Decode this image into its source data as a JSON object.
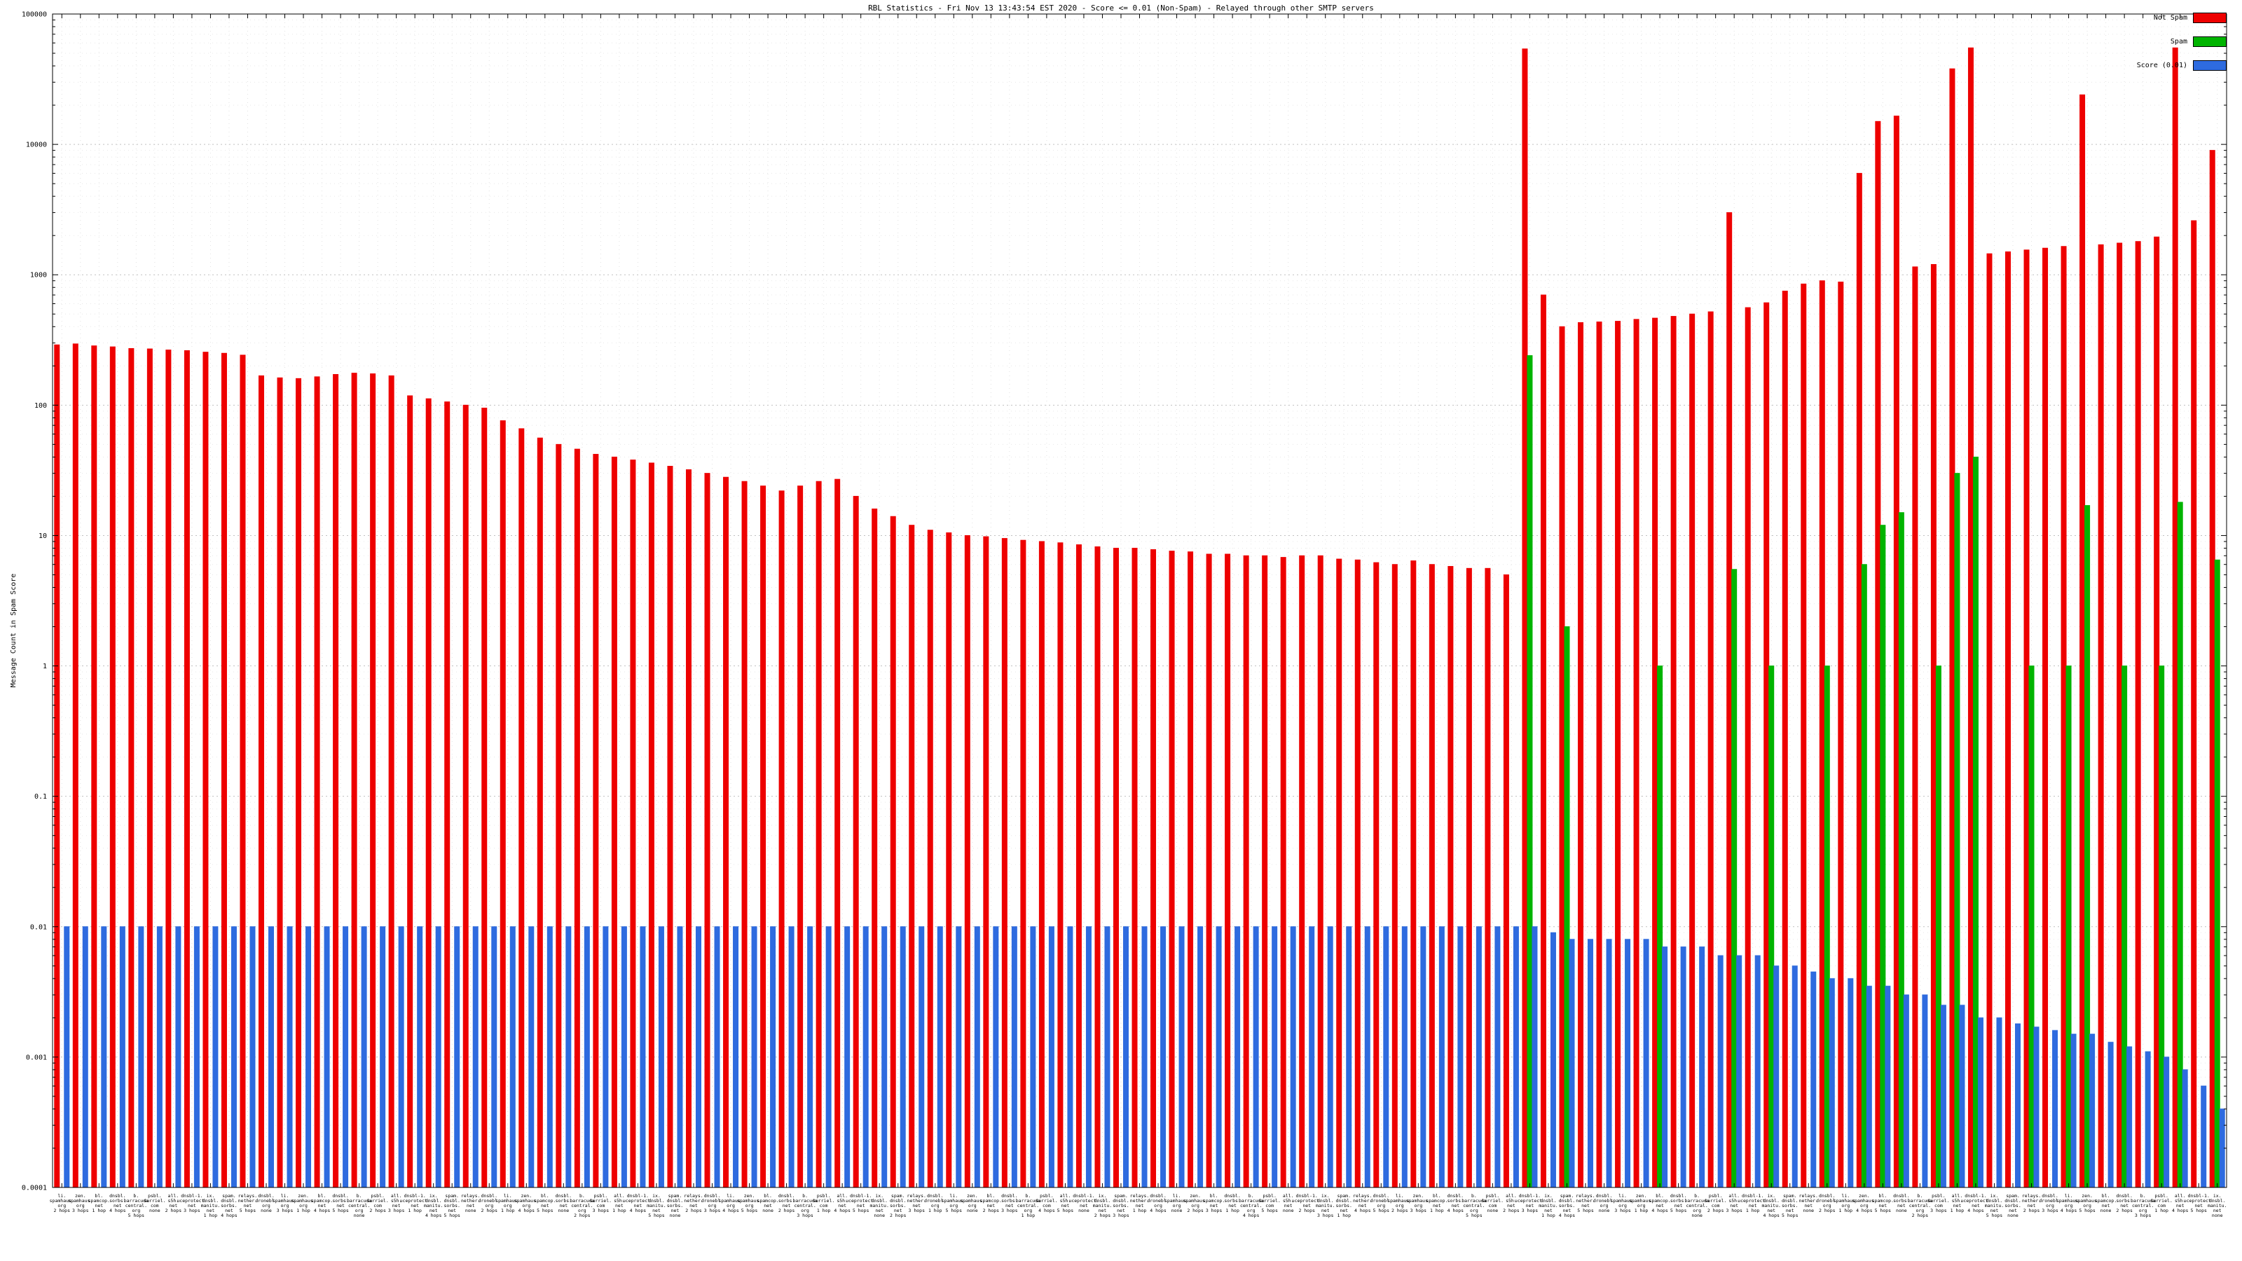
{
  "chart_data": {
    "type": "bar",
    "title": "RBL Statistics - Fri Nov 13 13:43:54 EST 2020 - Score <= 0.01 (Non-Spam) - Relayed through other SMTP servers",
    "ylabel": "Message Count in Spam Score",
    "xlabel": "",
    "yscale": "log",
    "ylim": [
      0.0001,
      100000
    ],
    "y_ticks": [
      "100000",
      "10000",
      "1000",
      "100",
      "10",
      "1",
      "0.1",
      "0.01",
      "0.001",
      "0.0001"
    ],
    "grid": true,
    "legend_position": "top-right",
    "legend": [
      {
        "label": "Not Spam",
        "color": "#ee0000"
      },
      {
        "label": "Spam",
        "color": "#00b400"
      },
      {
        "label": "Score (0.01)",
        "color": "#2e6bdf"
      }
    ],
    "categories": [
      "li.|spamhaus.|org|2 hops",
      "zen.|spamhaus.|org|3 hops",
      "bl.|spamcop.|net|1 hop",
      "dnsbl.|sorbs.|net|4 hops",
      "b.|barracuda|central.|org|5 hops",
      "psbl.|surriel.|com|none",
      "all.|s5h.|net|2 hops",
      "dnsbl-1.|uceprotect.|net|3 hops",
      "ix.|dnsbl.|manitu.|net|1 hop",
      "spam.|dnsbl.|sorbs.|net|4 hops",
      "relays.|nether.|net|5 hops",
      "dnsbl.|dronebl.|org|none",
      "li.|spamhaus.|org|3 hops",
      "zen.|spamhaus.|org|1 hop",
      "bl.|spamcop.|net|4 hops",
      "dnsbl.|sorbs.|net|5 hops",
      "b.|barracuda|central.|org|none",
      "psbl.|surriel.|com|2 hops",
      "all.|s5h.|net|3 hops",
      "dnsbl-1.|uceprotect.|net|1 hop",
      "ix.|dnsbl.|manitu.|net|4 hops",
      "spam.|dnsbl.|sorbs.|net|5 hops",
      "relays.|nether.|net|none",
      "dnsbl.|dronebl.|org|2 hops",
      "li.|spamhaus.|org|1 hop",
      "zen.|spamhaus.|org|4 hops",
      "bl.|spamcop.|net|5 hops",
      "dnsbl.|sorbs.|net|none",
      "b.|barracuda|central.|org|2 hops",
      "psbl.|surriel.|com|3 hops",
      "all.|s5h.|net|1 hop",
      "dnsbl-1.|uceprotect.|net|4 hops",
      "ix.|dnsbl.|manitu.|net|5 hops",
      "spam.|dnsbl.|sorbs.|net|none",
      "relays.|nether.|net|2 hops",
      "dnsbl.|dronebl.|org|3 hops",
      "li.|spamhaus.|org|4 hops",
      "zen.|spamhaus.|org|5 hops",
      "bl.|spamcop.|net|none",
      "dnsbl.|sorbs.|net|2 hops",
      "b.|barracuda|central.|org|3 hops",
      "psbl.|surriel.|com|1 hop",
      "all.|s5h.|net|4 hops",
      "dnsbl-1.|uceprotect.|net|5 hops",
      "ix.|dnsbl.|manitu.|net|none",
      "spam.|dnsbl.|sorbs.|net|2 hops",
      "relays.|nether.|net|3 hops",
      "dnsbl.|dronebl.|org|1 hop",
      "li.|spamhaus.|org|5 hops",
      "zen.|spamhaus.|org|none",
      "bl.|spamcop.|net|2 hops",
      "dnsbl.|sorbs.|net|3 hops",
      "b.|barracuda|central.|org|1 hop",
      "psbl.|surriel.|com|4 hops",
      "all.|s5h.|net|5 hops",
      "dnsbl-1.|uceprotect.|net|none",
      "ix.|dnsbl.|manitu.|net|2 hops",
      "spam.|dnsbl.|sorbs.|net|3 hops",
      "relays.|nether.|net|1 hop",
      "dnsbl.|dronebl.|org|4 hops",
      "li.|spamhaus.|org|none",
      "zen.|spamhaus.|org|2 hops",
      "bl.|spamcop.|net|3 hops",
      "dnsbl.|sorbs.|net|1 hop",
      "b.|barracuda|central.|org|4 hops",
      "psbl.|surriel.|com|5 hops",
      "all.|s5h.|net|none",
      "dnsbl-1.|uceprotect.|net|2 hops",
      "ix.|dnsbl.|manitu.|net|3 hops",
      "spam.|dnsbl.|sorbs.|net|1 hop",
      "relays.|nether.|net|4 hops",
      "dnsbl.|dronebl.|org|5 hops",
      "li.|spamhaus.|org|2 hops",
      "zen.|spamhaus.|org|3 hops",
      "bl.|spamcop.|net|1 hop",
      "dnsbl.|sorbs.|net|4 hops",
      "b.|barracuda|central.|org|5 hops",
      "psbl.|surriel.|com|none",
      "all.|s5h.|net|2 hops",
      "dnsbl-1.|uceprotect.|net|3 hops",
      "ix.|dnsbl.|manitu.|net|1 hop",
      "spam.|dnsbl.|sorbs.|net|4 hops",
      "relays.|nether.|net|5 hops",
      "dnsbl.|dronebl.|org|none",
      "li.|spamhaus.|org|3 hops",
      "zen.|spamhaus.|org|1 hop",
      "bl.|spamcop.|net|4 hops",
      "dnsbl.|sorbs.|net|5 hops",
      "b.|barracuda|central.|org|none",
      "psbl.|surriel.|com|2 hops",
      "all.|s5h.|net|3 hops",
      "dnsbl-1.|uceprotect.|net|1 hop",
      "ix.|dnsbl.|manitu.|net|4 hops",
      "spam.|dnsbl.|sorbs.|net|5 hops",
      "relays.|nether.|net|none",
      "dnsbl.|dronebl.|org|2 hops",
      "li.|spamhaus.|org|1 hop",
      "zen.|spamhaus.|org|4 hops",
      "bl.|spamcop.|net|5 hops",
      "dnsbl.|sorbs.|net|none",
      "b.|barracuda|central.|org|2 hops",
      "psbl.|surriel.|com|3 hops",
      "all.|s5h.|net|1 hop",
      "dnsbl-1.|uceprotect.|net|4 hops",
      "ix.|dnsbl.|manitu.|net|5 hops",
      "spam.|dnsbl.|sorbs.|net|none",
      "relays.|nether.|net|2 hops",
      "dnsbl.|dronebl.|org|3 hops",
      "li.|spamhaus.|org|4 hops",
      "zen.|spamhaus.|org|5 hops",
      "bl.|spamcop.|net|none",
      "dnsbl.|sorbs.|net|2 hops",
      "b.|barracuda|central.|org|3 hops",
      "psbl.|surriel.|com|1 hop",
      "all.|s5h.|net|4 hops",
      "dnsbl-1.|uceprotect.|net|5 hops",
      "ix.|dnsbl.|manitu.|net|none"
    ],
    "series": [
      {
        "name": "Not Spam",
        "color": "#ee0000",
        "values": [
          290,
          295,
          285,
          280,
          272,
          270,
          265,
          262,
          255,
          250,
          242,
          168,
          162,
          160,
          165,
          172,
          176,
          174,
          168,
          118,
          112,
          106,
          100,
          95,
          76,
          66,
          56,
          50,
          46,
          42,
          40,
          38,
          36,
          34,
          32,
          30,
          28,
          26,
          24,
          22,
          24,
          26,
          27,
          20,
          16,
          14,
          12,
          11,
          10.5,
          10,
          9.8,
          9.5,
          9.2,
          9,
          8.8,
          8.5,
          8.2,
          8,
          8,
          7.8,
          7.6,
          7.5,
          7.2,
          7.2,
          7,
          7,
          6.8,
          7,
          7,
          6.6,
          6.5,
          6.2,
          6,
          6.4,
          6,
          5.8,
          5.6,
          5.6,
          5,
          54000,
          700,
          400,
          430,
          435,
          440,
          455,
          465,
          480,
          500,
          520,
          3000,
          560,
          610,
          750,
          850,
          900,
          880,
          6000,
          15000,
          16500,
          1150,
          1200,
          38000,
          55000,
          1450,
          1500,
          1550,
          1600,
          1650,
          24000,
          1700,
          1750,
          1800,
          1950,
          55000,
          2600,
          9000
        ]
      },
      {
        "name": "Spam",
        "color": "#00b400",
        "values": [
          0,
          0,
          0,
          0,
          0,
          0,
          0,
          0,
          0,
          0,
          0,
          0,
          0,
          0,
          0,
          0,
          0,
          0,
          0,
          0,
          0,
          0,
          0,
          0,
          0,
          0,
          0,
          0,
          0,
          0,
          0,
          0,
          0,
          0,
          0,
          0,
          0,
          0,
          0,
          0,
          0,
          0,
          0,
          0,
          0,
          0,
          0,
          0,
          0,
          0,
          0,
          0,
          0,
          0,
          0,
          0,
          0,
          0,
          0,
          0,
          0,
          0,
          0,
          0,
          0,
          0,
          0,
          0,
          0,
          0,
          0,
          0,
          0,
          0,
          0,
          0,
          0,
          0,
          0,
          240,
          0,
          2,
          0,
          0,
          0,
          0,
          1,
          0,
          0,
          0,
          5.5,
          0,
          1,
          0,
          0,
          1,
          0,
          6,
          12,
          15,
          0,
          1,
          30,
          40,
          0,
          0,
          1,
          0,
          1,
          17,
          0,
          1,
          0,
          1,
          18,
          0,
          6.5
        ]
      },
      {
        "name": "Score (0.01)",
        "color": "#2e6bdf",
        "values": [
          0.01,
          0.01,
          0.01,
          0.01,
          0.01,
          0.01,
          0.01,
          0.01,
          0.01,
          0.01,
          0.01,
          0.01,
          0.01,
          0.01,
          0.01,
          0.01,
          0.01,
          0.01,
          0.01,
          0.01,
          0.01,
          0.01,
          0.01,
          0.01,
          0.01,
          0.01,
          0.01,
          0.01,
          0.01,
          0.01,
          0.01,
          0.01,
          0.01,
          0.01,
          0.01,
          0.01,
          0.01,
          0.01,
          0.01,
          0.01,
          0.01,
          0.01,
          0.01,
          0.01,
          0.01,
          0.01,
          0.01,
          0.01,
          0.01,
          0.01,
          0.01,
          0.01,
          0.01,
          0.01,
          0.01,
          0.01,
          0.01,
          0.01,
          0.01,
          0.01,
          0.01,
          0.01,
          0.01,
          0.01,
          0.01,
          0.01,
          0.01,
          0.01,
          0.01,
          0.01,
          0.01,
          0.01,
          0.01,
          0.01,
          0.01,
          0.01,
          0.01,
          0.01,
          0.01,
          0.01,
          0.009,
          0.008,
          0.008,
          0.008,
          0.008,
          0.008,
          0.007,
          0.007,
          0.007,
          0.006,
          0.006,
          0.006,
          0.005,
          0.005,
          0.0045,
          0.004,
          0.004,
          0.0035,
          0.0035,
          0.003,
          0.003,
          0.0025,
          0.0025,
          0.002,
          0.002,
          0.0018,
          0.0017,
          0.0016,
          0.0015,
          0.0015,
          0.0013,
          0.0012,
          0.0011,
          0.001,
          0.0008,
          0.0006,
          0.0004
        ]
      }
    ]
  }
}
